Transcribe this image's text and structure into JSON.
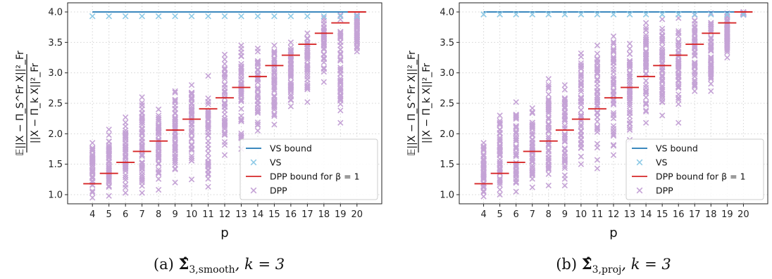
{
  "colors": {
    "vs_bound": "#1f77b4",
    "vs": "#8ecae6",
    "dpp_bound": "#d62728",
    "dpp": "#c5a3d6",
    "grid": "#d4d4d4"
  },
  "chart_data": [
    {
      "type": "scatter",
      "caption": "(a) Σ̂3,smooth, k = 3",
      "caption_parts": {
        "prefix": "(a) ",
        "sigma": "Σ̂",
        "sub": "3,smooth",
        "suffix": ", k = 3"
      },
      "xlabel": "p",
      "ylabel_top": "𝔼||X − Π_S^Fr X||²_Fr",
      "ylabel_bottom": "||X − Π_k X||²_Fr",
      "x": [
        4,
        5,
        6,
        7,
        8,
        9,
        10,
        11,
        12,
        13,
        14,
        15,
        16,
        17,
        18,
        19,
        20
      ],
      "xlim": [
        2.5,
        21.5
      ],
      "ylim": [
        0.85,
        4.15
      ],
      "yticks": [
        "1.0",
        "1.5",
        "2.0",
        "2.5",
        "3.0",
        "3.5",
        "4.0"
      ],
      "grid": true,
      "legend_position": "lower-right",
      "legend": [
        "VS bound",
        "VS",
        "DPP bound for β = 1",
        "DPP"
      ],
      "series": [
        {
          "name": "VS bound",
          "kind": "line",
          "x": [
            4,
            20
          ],
          "values": [
            4.0,
            4.0
          ]
        },
        {
          "name": "VS",
          "kind": "scatter",
          "x": [
            4,
            5,
            6,
            7,
            8,
            9,
            10,
            11,
            12,
            13,
            14,
            15,
            16,
            17,
            18,
            19,
            20
          ],
          "values": [
            3.93,
            3.93,
            3.93,
            3.93,
            3.93,
            3.93,
            3.93,
            3.93,
            3.93,
            3.93,
            3.93,
            3.93,
            3.93,
            3.93,
            3.93,
            3.93,
            3.93
          ]
        },
        {
          "name": "DPP bound for β = 1",
          "kind": "segments",
          "x": [
            4,
            5,
            6,
            7,
            8,
            9,
            10,
            11,
            12,
            13,
            14,
            15,
            16,
            17,
            18,
            19,
            20
          ],
          "values": [
            1.18,
            1.35,
            1.53,
            1.71,
            1.88,
            2.06,
            2.24,
            2.41,
            2.59,
            2.76,
            2.94,
            3.12,
            3.29,
            3.47,
            3.65,
            3.82,
            4.0
          ]
        },
        {
          "name": "DPP",
          "kind": "scatter_ranges",
          "x": [
            4,
            5,
            6,
            7,
            8,
            9,
            10,
            11,
            12,
            13,
            14,
            15,
            16,
            17,
            18,
            19,
            20
          ],
          "min": [
            0.95,
            0.98,
            1.03,
            1.03,
            1.08,
            1.2,
            1.25,
            1.13,
            1.65,
            1.75,
            2.05,
            2.15,
            2.45,
            2.52,
            2.85,
            2.18,
            3.35
          ],
          "max": [
            1.85,
            2.07,
            2.27,
            2.6,
            2.4,
            2.7,
            2.8,
            2.95,
            3.3,
            3.45,
            3.4,
            3.45,
            3.5,
            3.65,
            3.9,
            3.95,
            3.95
          ]
        }
      ]
    },
    {
      "type": "scatter",
      "caption": "(b) Σ̂3,proj, k = 3",
      "caption_parts": {
        "prefix": "(b) ",
        "sigma": "Σ̂",
        "sub": "3,proj",
        "suffix": ", k = 3"
      },
      "xlabel": "p",
      "ylabel_top": "𝔼||X − Π_S^Fr X||²_Fr",
      "ylabel_bottom": "||X − Π_k X||²_Fr",
      "x": [
        4,
        5,
        6,
        7,
        8,
        9,
        10,
        11,
        12,
        13,
        14,
        15,
        16,
        17,
        18,
        19,
        20
      ],
      "xlim": [
        2.5,
        21.5
      ],
      "ylim": [
        0.85,
        4.15
      ],
      "yticks": [
        "1.0",
        "1.5",
        "2.0",
        "2.5",
        "3.0",
        "3.5",
        "4.0"
      ],
      "grid": true,
      "legend_position": "lower-right",
      "legend": [
        "VS bound",
        "VS",
        "DPP bound for β = 1",
        "DPP"
      ],
      "series": [
        {
          "name": "VS bound",
          "kind": "line",
          "x": [
            4,
            20
          ],
          "values": [
            4.0,
            4.0
          ]
        },
        {
          "name": "VS",
          "kind": "scatter",
          "x": [
            4,
            5,
            6,
            7,
            8,
            9,
            10,
            11,
            12,
            13,
            14,
            15,
            16,
            17,
            18,
            19,
            20
          ],
          "values": [
            3.96,
            3.96,
            3.96,
            3.96,
            3.96,
            3.96,
            3.96,
            3.96,
            3.96,
            3.96,
            3.96,
            3.96,
            3.96,
            3.96,
            3.96,
            3.96,
            3.96
          ]
        },
        {
          "name": "DPP bound for β = 1",
          "kind": "segments",
          "x": [
            4,
            5,
            6,
            7,
            8,
            9,
            10,
            11,
            12,
            13,
            14,
            15,
            16,
            17,
            18,
            19,
            20
          ],
          "values": [
            1.18,
            1.35,
            1.53,
            1.71,
            1.88,
            2.06,
            2.24,
            2.41,
            2.59,
            2.76,
            2.94,
            3.12,
            3.29,
            3.47,
            3.65,
            3.82,
            4.0
          ]
        },
        {
          "name": "DPP",
          "kind": "scatter_ranges",
          "x": [
            4,
            5,
            6,
            7,
            8,
            9,
            10,
            11,
            12,
            13,
            14,
            15,
            16,
            17,
            18,
            19,
            20
          ],
          "min": [
            0.97,
            1.0,
            1.05,
            1.12,
            1.15,
            1.15,
            1.5,
            1.43,
            1.65,
            1.9,
            2.18,
            2.3,
            2.18,
            2.7,
            2.7,
            3.25,
            3.95
          ],
          "max": [
            1.85,
            2.3,
            2.52,
            2.42,
            2.9,
            2.8,
            3.32,
            3.45,
            3.6,
            3.48,
            3.82,
            3.88,
            3.9,
            3.95,
            3.98,
            3.98,
            4.0
          ]
        }
      ]
    }
  ]
}
